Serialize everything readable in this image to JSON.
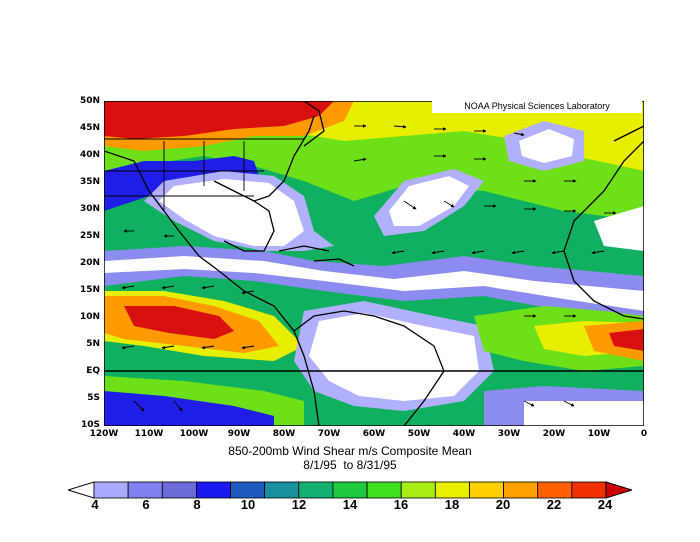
{
  "map": {
    "credit": "NOAA Physical Sciences Laboratory",
    "lat_labels": [
      "50N",
      "45N",
      "40N",
      "35N",
      "30N",
      "25N",
      "20N",
      "15N",
      "10N",
      "5N",
      "EQ",
      "5S",
      "10S"
    ],
    "lon_labels": [
      "120W",
      "110W",
      "100W",
      "90W",
      "80W",
      "70W",
      "60W",
      "50W",
      "40W",
      "30W",
      "20W",
      "10W",
      "0"
    ],
    "caption_line1": "850-200mb Wind Shear m/s Composite Mean",
    "caption_line2": "8/1/95  to 8/31/95"
  },
  "colorbar": {
    "labels": [
      "4",
      "6",
      "8",
      "10",
      "12",
      "14",
      "16",
      "18",
      "20",
      "22",
      "24"
    ],
    "colors": [
      "#ffffff",
      "#aaaaff",
      "#8080f0",
      "#6a6ad8",
      "#1a1af0",
      "#1f5ac0",
      "#1a8fa0",
      "#10b070",
      "#20c840",
      "#40e020",
      "#a8ec14",
      "#e8f000",
      "#ffd000",
      "#ff9f00",
      "#ff6000",
      "#f03000",
      "#cc0000"
    ]
  },
  "palette": {
    "white": "#ffffff",
    "lavender": "#b0b0ff",
    "periwinkle": "#8c8cf0",
    "blue": "#1e1ee6",
    "teal": "#1a8fa0",
    "green": "#10b060",
    "lime": "#6ee01a",
    "yellow": "#e8ee00",
    "orange": "#ff9a00",
    "red": "#d81010"
  }
}
